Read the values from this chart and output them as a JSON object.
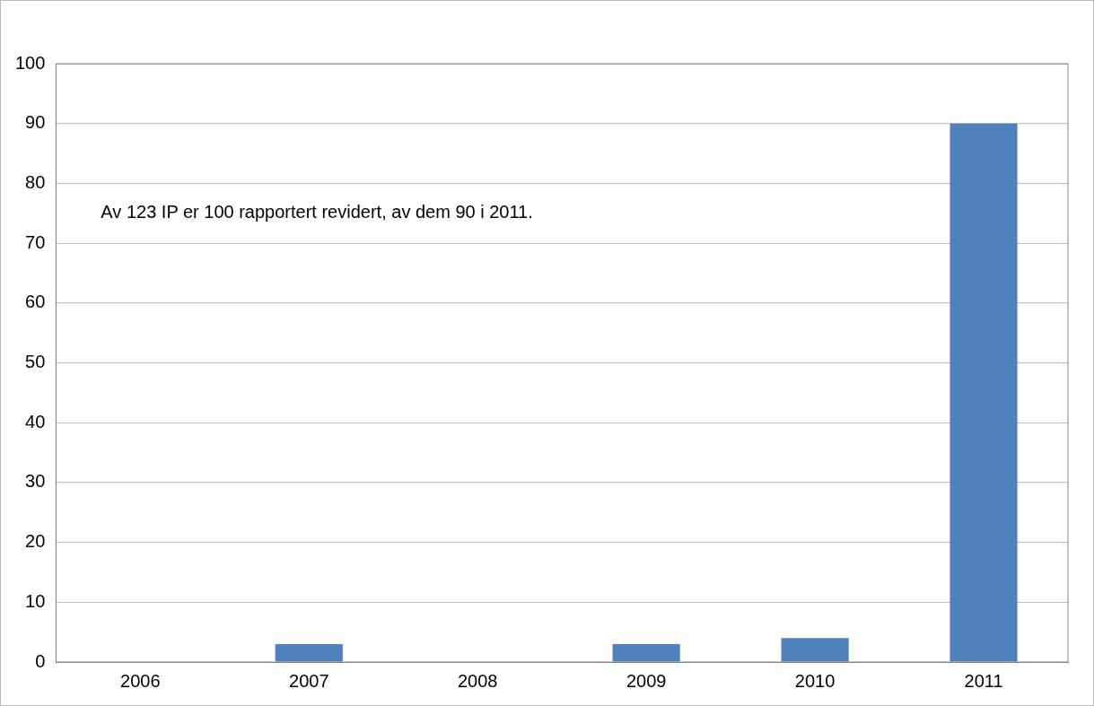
{
  "chart_data": {
    "type": "bar",
    "categories": [
      "2006",
      "2007",
      "2008",
      "2009",
      "2010",
      "2011"
    ],
    "values": [
      0,
      3,
      0,
      3,
      4,
      90
    ],
    "color": "#4f81bd",
    "ylim": [
      0,
      100
    ],
    "yticks": [
      0,
      10,
      20,
      30,
      40,
      50,
      60,
      70,
      80,
      90,
      100
    ],
    "grid": "y",
    "legend": false,
    "annotations": [
      "Av 123 IP er 100 rapportert revidert, av dem 90 i 2011."
    ]
  }
}
